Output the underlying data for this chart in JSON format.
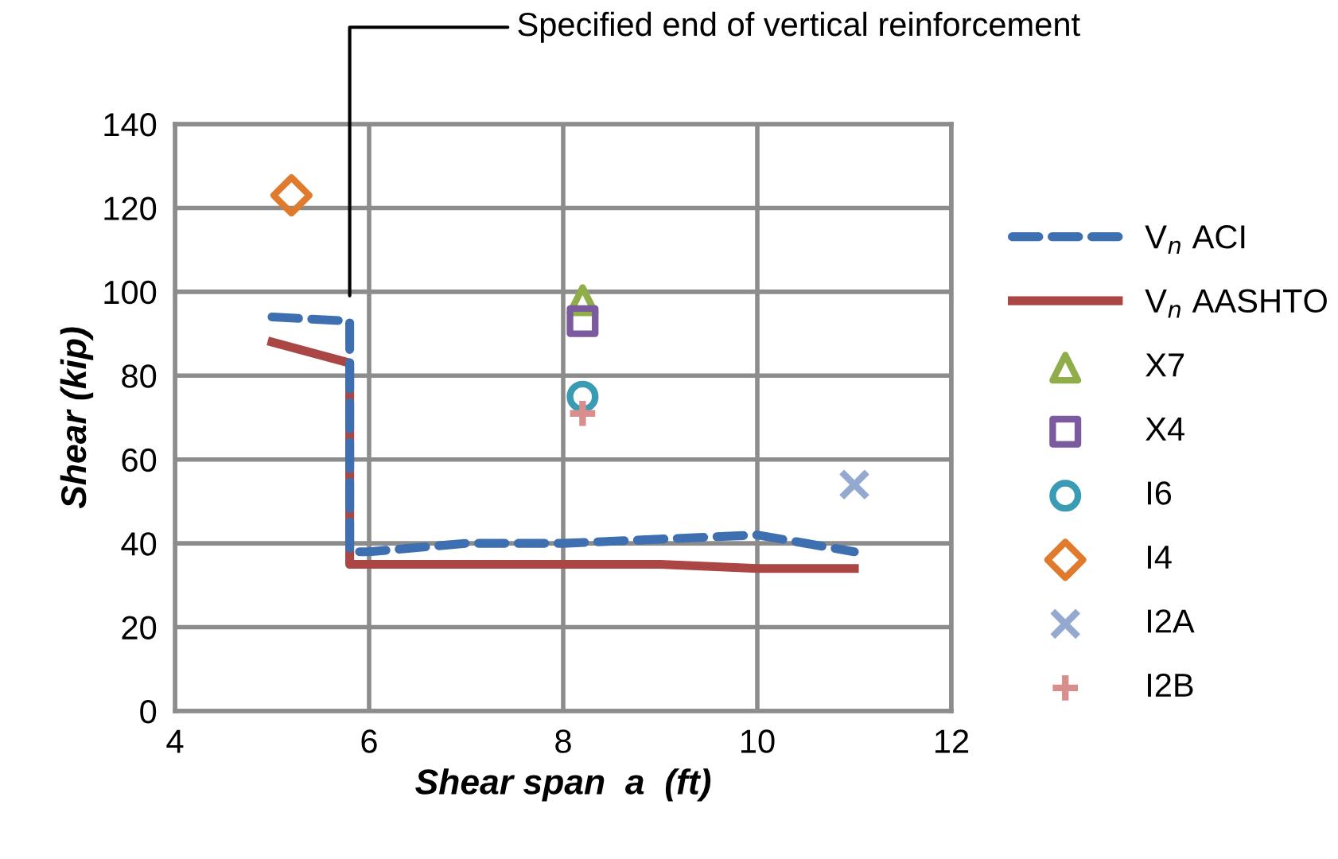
{
  "chart_data": {
    "type": "line",
    "xlabel": "Shear span  a  (ft)",
    "ylabel": "Shear (kip)",
    "xlim": [
      4,
      12
    ],
    "xticks": [
      4,
      6,
      8,
      10,
      12
    ],
    "ylim": [
      0,
      140
    ],
    "yticks": [
      0,
      20,
      40,
      60,
      80,
      100,
      120,
      140
    ],
    "grid": true,
    "legend": "right",
    "annotations": [
      "Specified end of vertical reinforcement"
    ],
    "series": [
      {
        "name": "V$_{n}$ ACI",
        "type": "line",
        "line_style": "dashed",
        "marker": "none",
        "color": "#3e6fb0",
        "x": [
          5,
          5.8,
          5.8,
          6,
          7,
          8,
          9,
          10,
          11
        ],
        "values": [
          94,
          93,
          38,
          38,
          40,
          40,
          41,
          42,
          38
        ]
      },
      {
        "name": "V$_{n}$ AASHTO",
        "type": "line",
        "line_style": "solid",
        "marker": "none",
        "color": "#aa4643",
        "x": [
          5,
          5.8,
          5.8,
          9,
          10,
          11
        ],
        "values": [
          88,
          83,
          35,
          35,
          34,
          34
        ]
      },
      {
        "name": "X7",
        "type": "scatter",
        "marker": "triangle",
        "color": "#8fae4a",
        "x": [
          8.2
        ],
        "values": [
          98
        ]
      },
      {
        "name": "X4",
        "type": "scatter",
        "marker": "square",
        "color": "#7b5aa0",
        "x": [
          8.2
        ],
        "values": [
          93
        ]
      },
      {
        "name": "I6",
        "type": "scatter",
        "marker": "circle",
        "color": "#3a9bb5",
        "x": [
          8.2
        ],
        "values": [
          75
        ]
      },
      {
        "name": "I4",
        "type": "scatter",
        "marker": "diamond",
        "color": "#e07b2e",
        "x": [
          5.2
        ],
        "values": [
          123
        ]
      },
      {
        "name": "I2A",
        "type": "scatter",
        "marker": "x",
        "color": "#93a9d0",
        "x": [
          11
        ],
        "values": [
          54
        ]
      },
      {
        "name": "I2B",
        "type": "scatter",
        "marker": "cross",
        "color": "#d98e8e",
        "x": [
          8.2
        ],
        "values": [
          71
        ]
      }
    ]
  }
}
